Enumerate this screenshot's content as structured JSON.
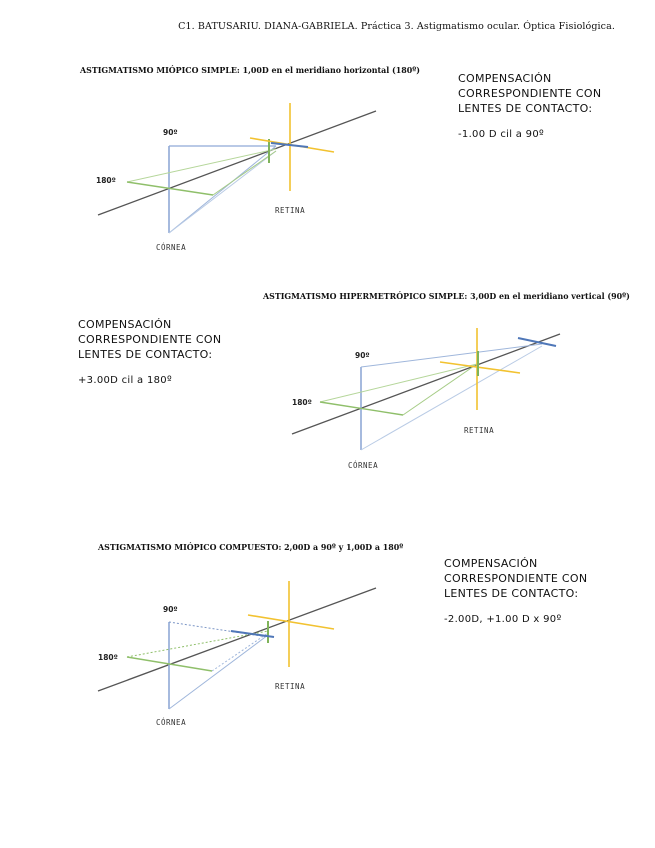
{
  "header": "C1. BATUSARIU. DIANA-GABRIELA. Práctica 3. Astigmatismo ocular. Óptica Fisiológica.",
  "sections": [
    {
      "title": "ASTIGMATISMO MIÓPICO SIMPLE: 1,00D en el meridiano horizontal (180º)",
      "comp_lines": [
        "COMPENSACIÓN",
        "CORRESPONDIENTE CON",
        "LENTES DE CONTACTO:"
      ],
      "formula": "-1.00 D cil a 90º",
      "label_90": "90º",
      "label_180": "180º",
      "label_retina": "RETINA",
      "label_cornea": "CÓRNEA"
    },
    {
      "title": "ASTIGMATISMO HIPERMETRÓPICO SIMPLE: 3,00D en el meridiano vertical (90º)",
      "comp_lines": [
        "COMPENSACIÓN",
        "CORRESPONDIENTE CON",
        "LENTES DE CONTACTO:"
      ],
      "formula": "+3.00D cil a 180º",
      "label_90": "90º",
      "label_180": "180º",
      "label_retina": "RETINA",
      "label_cornea": "CÓRNEA"
    },
    {
      "title": "ASTIGMATISMO MIÓPICO COMPUESTO: 2,00D a 90º y 1,00D a 180º",
      "comp_lines": [
        "COMPENSACIÓN",
        "CORRESPONDIENTE CON",
        "LENTES DE CONTACTO:"
      ],
      "formula": "-2.00D, +1.00 D x 90º",
      "label_90": "90º",
      "label_180": "180º",
      "label_retina": "RETINA",
      "label_cornea": "CÓRNEA"
    }
  ],
  "colors": {
    "axis": "#555555",
    "vertical_meridian": "#8fa9d6",
    "horizontal_meridian": "#8fbf6a",
    "retina": "#f2c230"
  }
}
